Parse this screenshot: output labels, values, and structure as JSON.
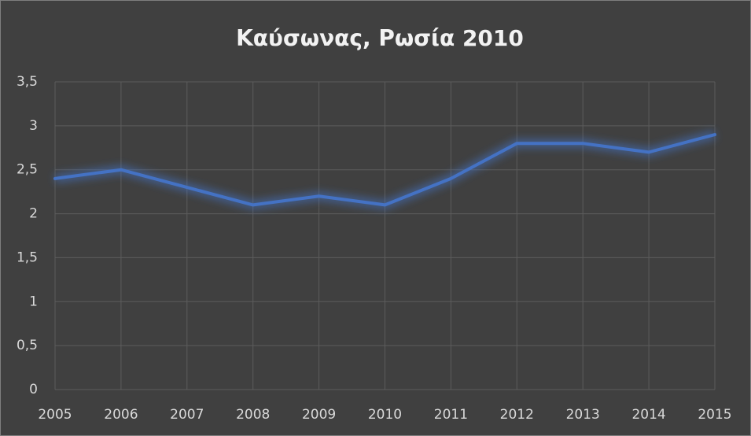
{
  "chart_data": {
    "type": "line",
    "title": "Καύσωνας, Ρωσία 2010",
    "categories": [
      "2005",
      "2006",
      "2007",
      "2008",
      "2009",
      "2010",
      "2011",
      "2012",
      "2013",
      "2014",
      "2015"
    ],
    "values": [
      2.4,
      2.5,
      2.3,
      2.1,
      2.2,
      2.1,
      2.4,
      2.8,
      2.8,
      2.7,
      2.9
    ],
    "color": "#4472c4",
    "ylim": [
      0,
      3.5
    ],
    "yticks": [
      0,
      {
        "value": 0.5,
        "label": "0,5"
      },
      1,
      {
        "value": 1.5,
        "label": "1,5"
      },
      2,
      {
        "value": 2.5,
        "label": "2,5"
      },
      3,
      {
        "value": 3.5,
        "label": "3,5"
      }
    ],
    "grid": true
  }
}
